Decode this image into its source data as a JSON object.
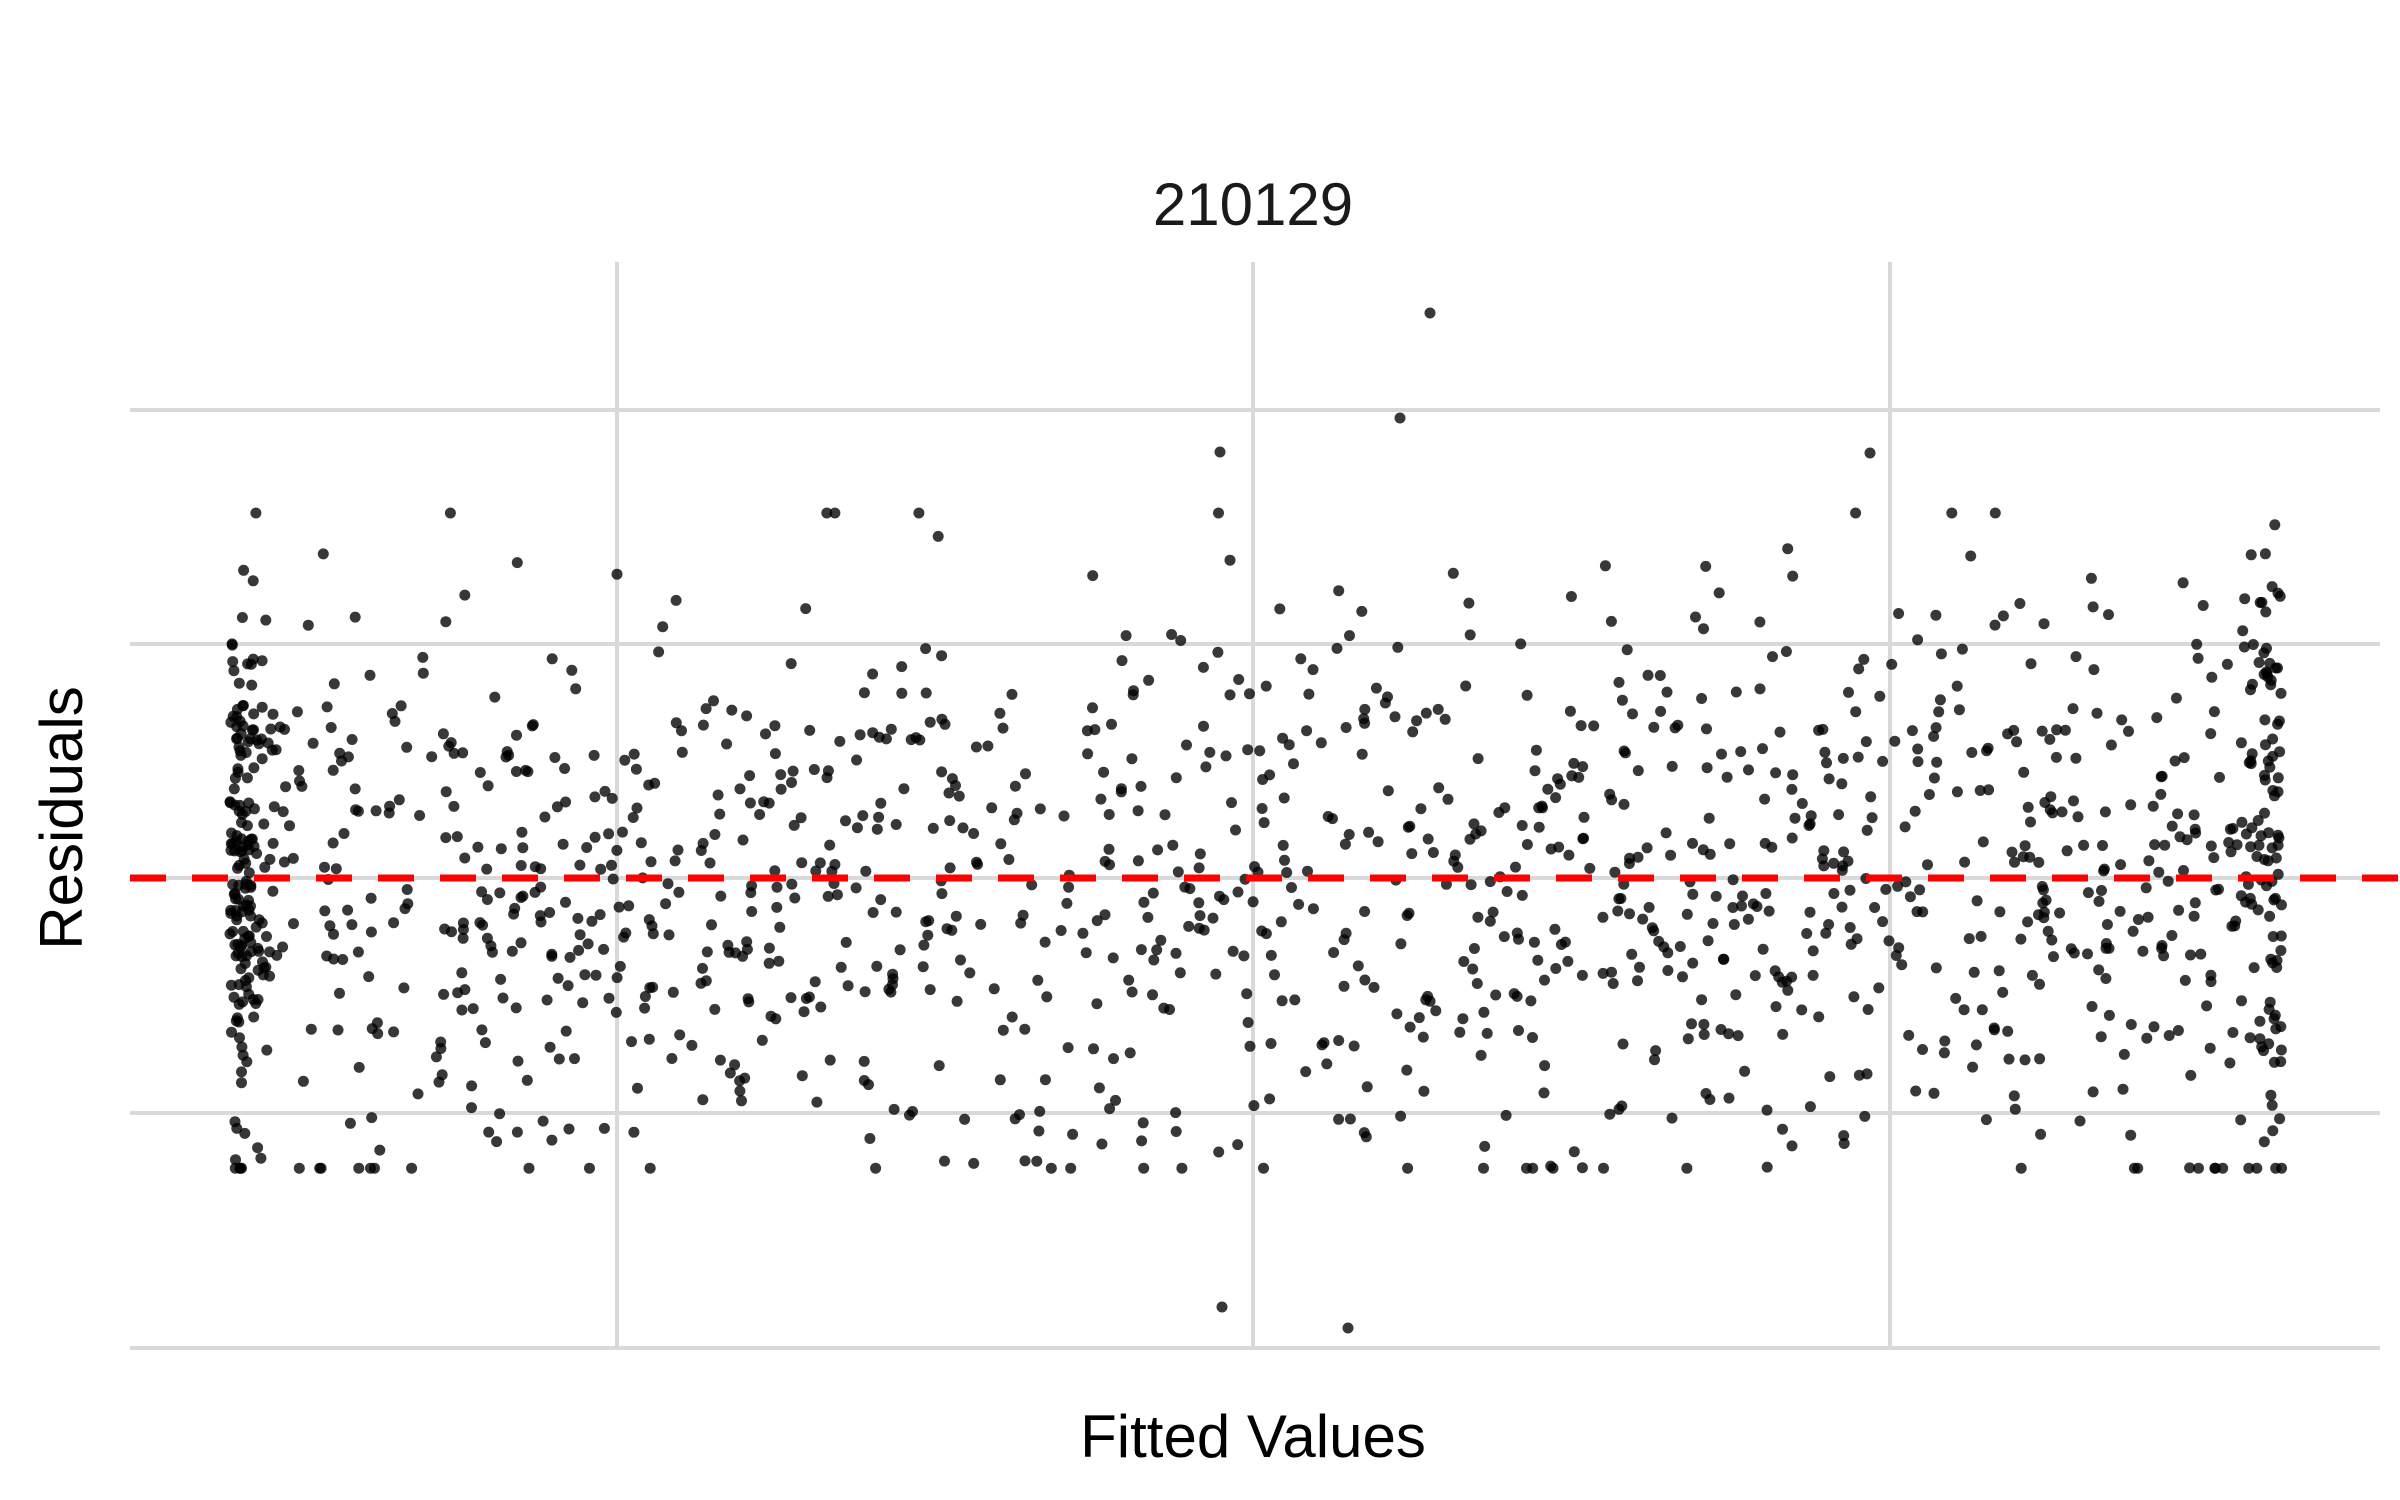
{
  "chart_data": {
    "type": "scatter",
    "title": "210129",
    "xlabel": "Fitted Values",
    "ylabel": "Residuals",
    "x_tick_labels_shown": false,
    "y_tick_labels_shown": false,
    "xlim": [
      0,
      1
    ],
    "ylim": [
      -1,
      1
    ],
    "grid": true,
    "reference_line": {
      "y": 0,
      "color": "#ff0000",
      "style": "dashed"
    },
    "point_color": "#000000",
    "point_count": 1500
  },
  "labels": {
    "title": "210129",
    "xlabel": "Fitted Values",
    "ylabel": "Residuals"
  }
}
